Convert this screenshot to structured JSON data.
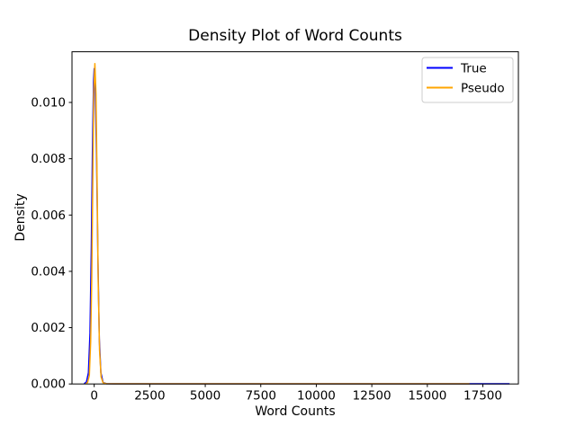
{
  "chart_data": {
    "type": "line",
    "title": "Density Plot of Word Counts",
    "xlabel": "Word Counts",
    "ylabel": "Density",
    "xlim": [
      -1000,
      19100
    ],
    "ylim": [
      0,
      0.0118
    ],
    "grid": false,
    "x_ticks": [
      0,
      2500,
      5000,
      7500,
      10000,
      12500,
      15000,
      17500
    ],
    "x_tick_labels": [
      "0",
      "2500",
      "5000",
      "7500",
      "10000",
      "12500",
      "15000",
      "17500"
    ],
    "y_ticks": [
      0.0,
      0.002,
      0.004,
      0.006,
      0.008,
      0.01
    ],
    "y_tick_labels": [
      "0.000",
      "0.002",
      "0.004",
      "0.006",
      "0.008",
      "0.010"
    ],
    "legend": {
      "position": "upper right",
      "entries": [
        {
          "label": "True",
          "color": "#0000ff"
        },
        {
          "label": "Pseudo",
          "color": "#ffa500"
        }
      ]
    },
    "series": [
      {
        "name": "True",
        "color": "#0000ff",
        "points": [
          [
            -450,
            1e-05
          ],
          [
            -350,
            7e-05
          ],
          [
            -260,
            0.0004
          ],
          [
            -190,
            0.0018
          ],
          [
            -130,
            0.0048
          ],
          [
            -80,
            0.0082
          ],
          [
            -30,
            0.0107
          ],
          [
            0,
            0.0112
          ],
          [
            50,
            0.0104
          ],
          [
            110,
            0.0079
          ],
          [
            170,
            0.0043
          ],
          [
            230,
            0.0016
          ],
          [
            300,
            0.0004
          ],
          [
            400,
            5e-05
          ],
          [
            550,
            1e-05
          ],
          [
            1000,
            5e-06
          ],
          [
            5000,
            5e-06
          ],
          [
            10000,
            5e-06
          ],
          [
            15000,
            5e-06
          ],
          [
            17000,
            5e-06
          ],
          [
            18000,
            5e-06
          ],
          [
            18700,
            5e-06
          ]
        ]
      },
      {
        "name": "Pseudo",
        "color": "#ffa500",
        "points": [
          [
            -380,
            1e-05
          ],
          [
            -300,
            5e-05
          ],
          [
            -220,
            0.0003
          ],
          [
            -160,
            0.0015
          ],
          [
            -110,
            0.0038
          ],
          [
            -60,
            0.0075
          ],
          [
            -20,
            0.0103
          ],
          [
            30,
            0.01138
          ],
          [
            80,
            0.0103
          ],
          [
            130,
            0.0072
          ],
          [
            180,
            0.0036
          ],
          [
            240,
            0.0012
          ],
          [
            310,
            0.00025
          ],
          [
            400,
            4e-05
          ],
          [
            550,
            1e-05
          ],
          [
            1000,
            5e-06
          ],
          [
            5000,
            5e-06
          ],
          [
            10000,
            5e-06
          ],
          [
            15000,
            5e-06
          ],
          [
            16900,
            5e-06
          ]
        ]
      }
    ]
  }
}
